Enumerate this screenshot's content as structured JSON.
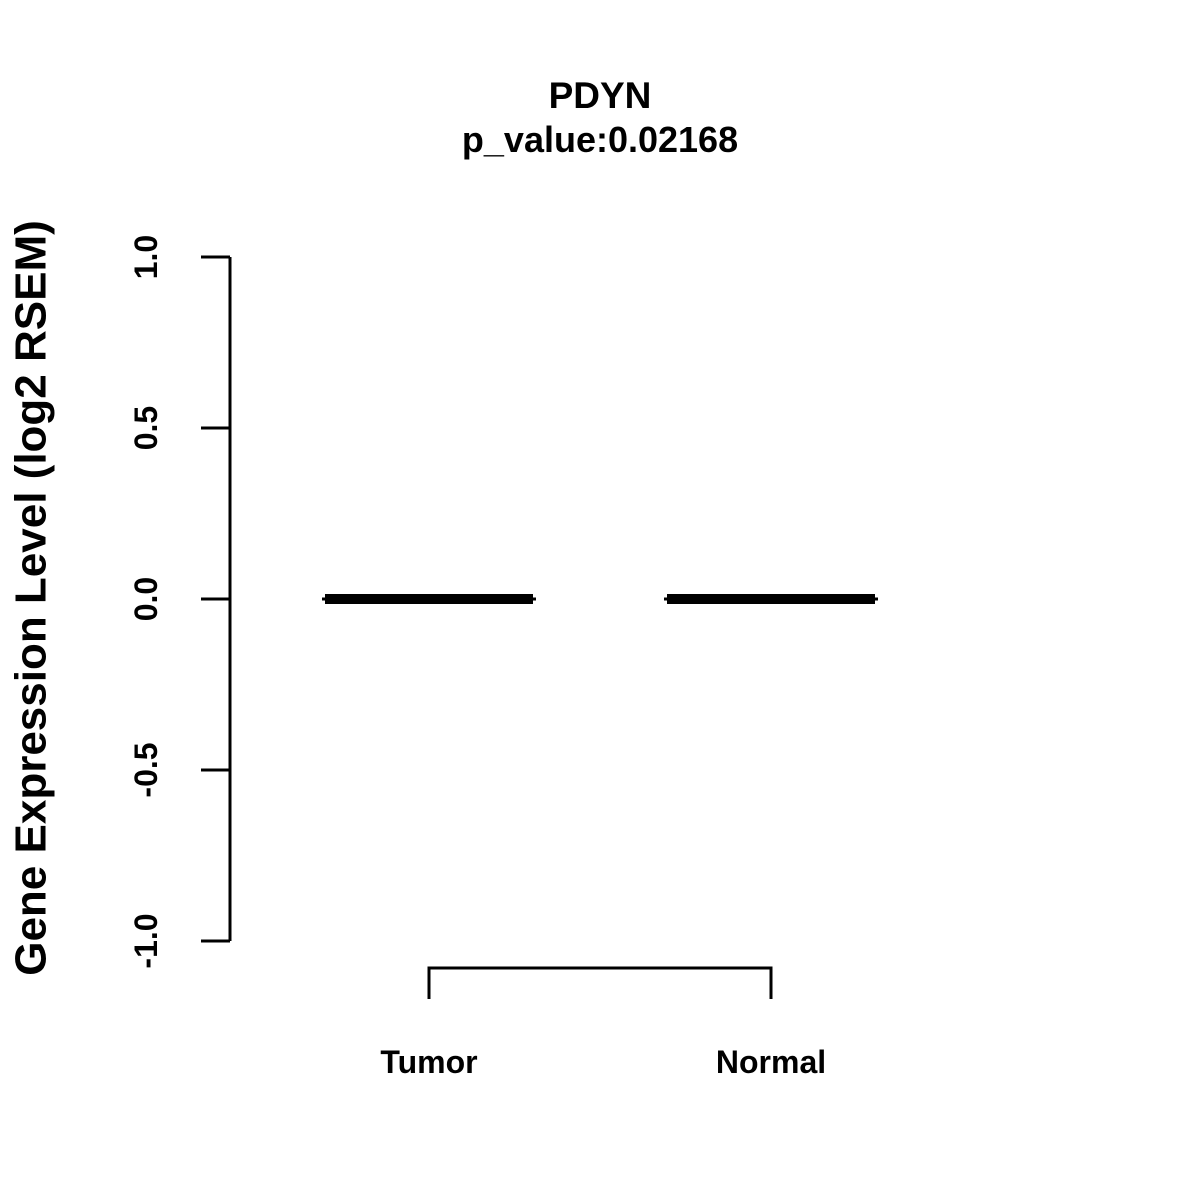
{
  "chart_data": {
    "type": "boxplot",
    "title": "PDYN",
    "subtitle": "p_value:0.02168",
    "ylabel": "Gene Expression Level (log2 RSEM)",
    "ylim": [
      -1.0,
      1.0
    ],
    "yticks": [
      1.0,
      0.5,
      0.0,
      -0.5,
      -1.0
    ],
    "ytick_labels": [
      "1.0",
      "0.5",
      "0.0",
      "-0.5",
      "-1.0"
    ],
    "categories": [
      "Tumor",
      "Normal"
    ],
    "series": [
      {
        "name": "Tumor",
        "median": 0.0,
        "q1": 0.0,
        "q3": 0.0,
        "whisker_low": 0.0,
        "whisker_high": 0.0
      },
      {
        "name": "Normal",
        "median": 0.0,
        "q1": 0.0,
        "q3": 0.0,
        "whisker_low": 0.0,
        "whisker_high": 0.0
      }
    ],
    "comparison_bracket": {
      "between": [
        "Tumor",
        "Normal"
      ]
    },
    "grid": false,
    "legend": null,
    "color": "#000000",
    "background": "#ffffff"
  }
}
